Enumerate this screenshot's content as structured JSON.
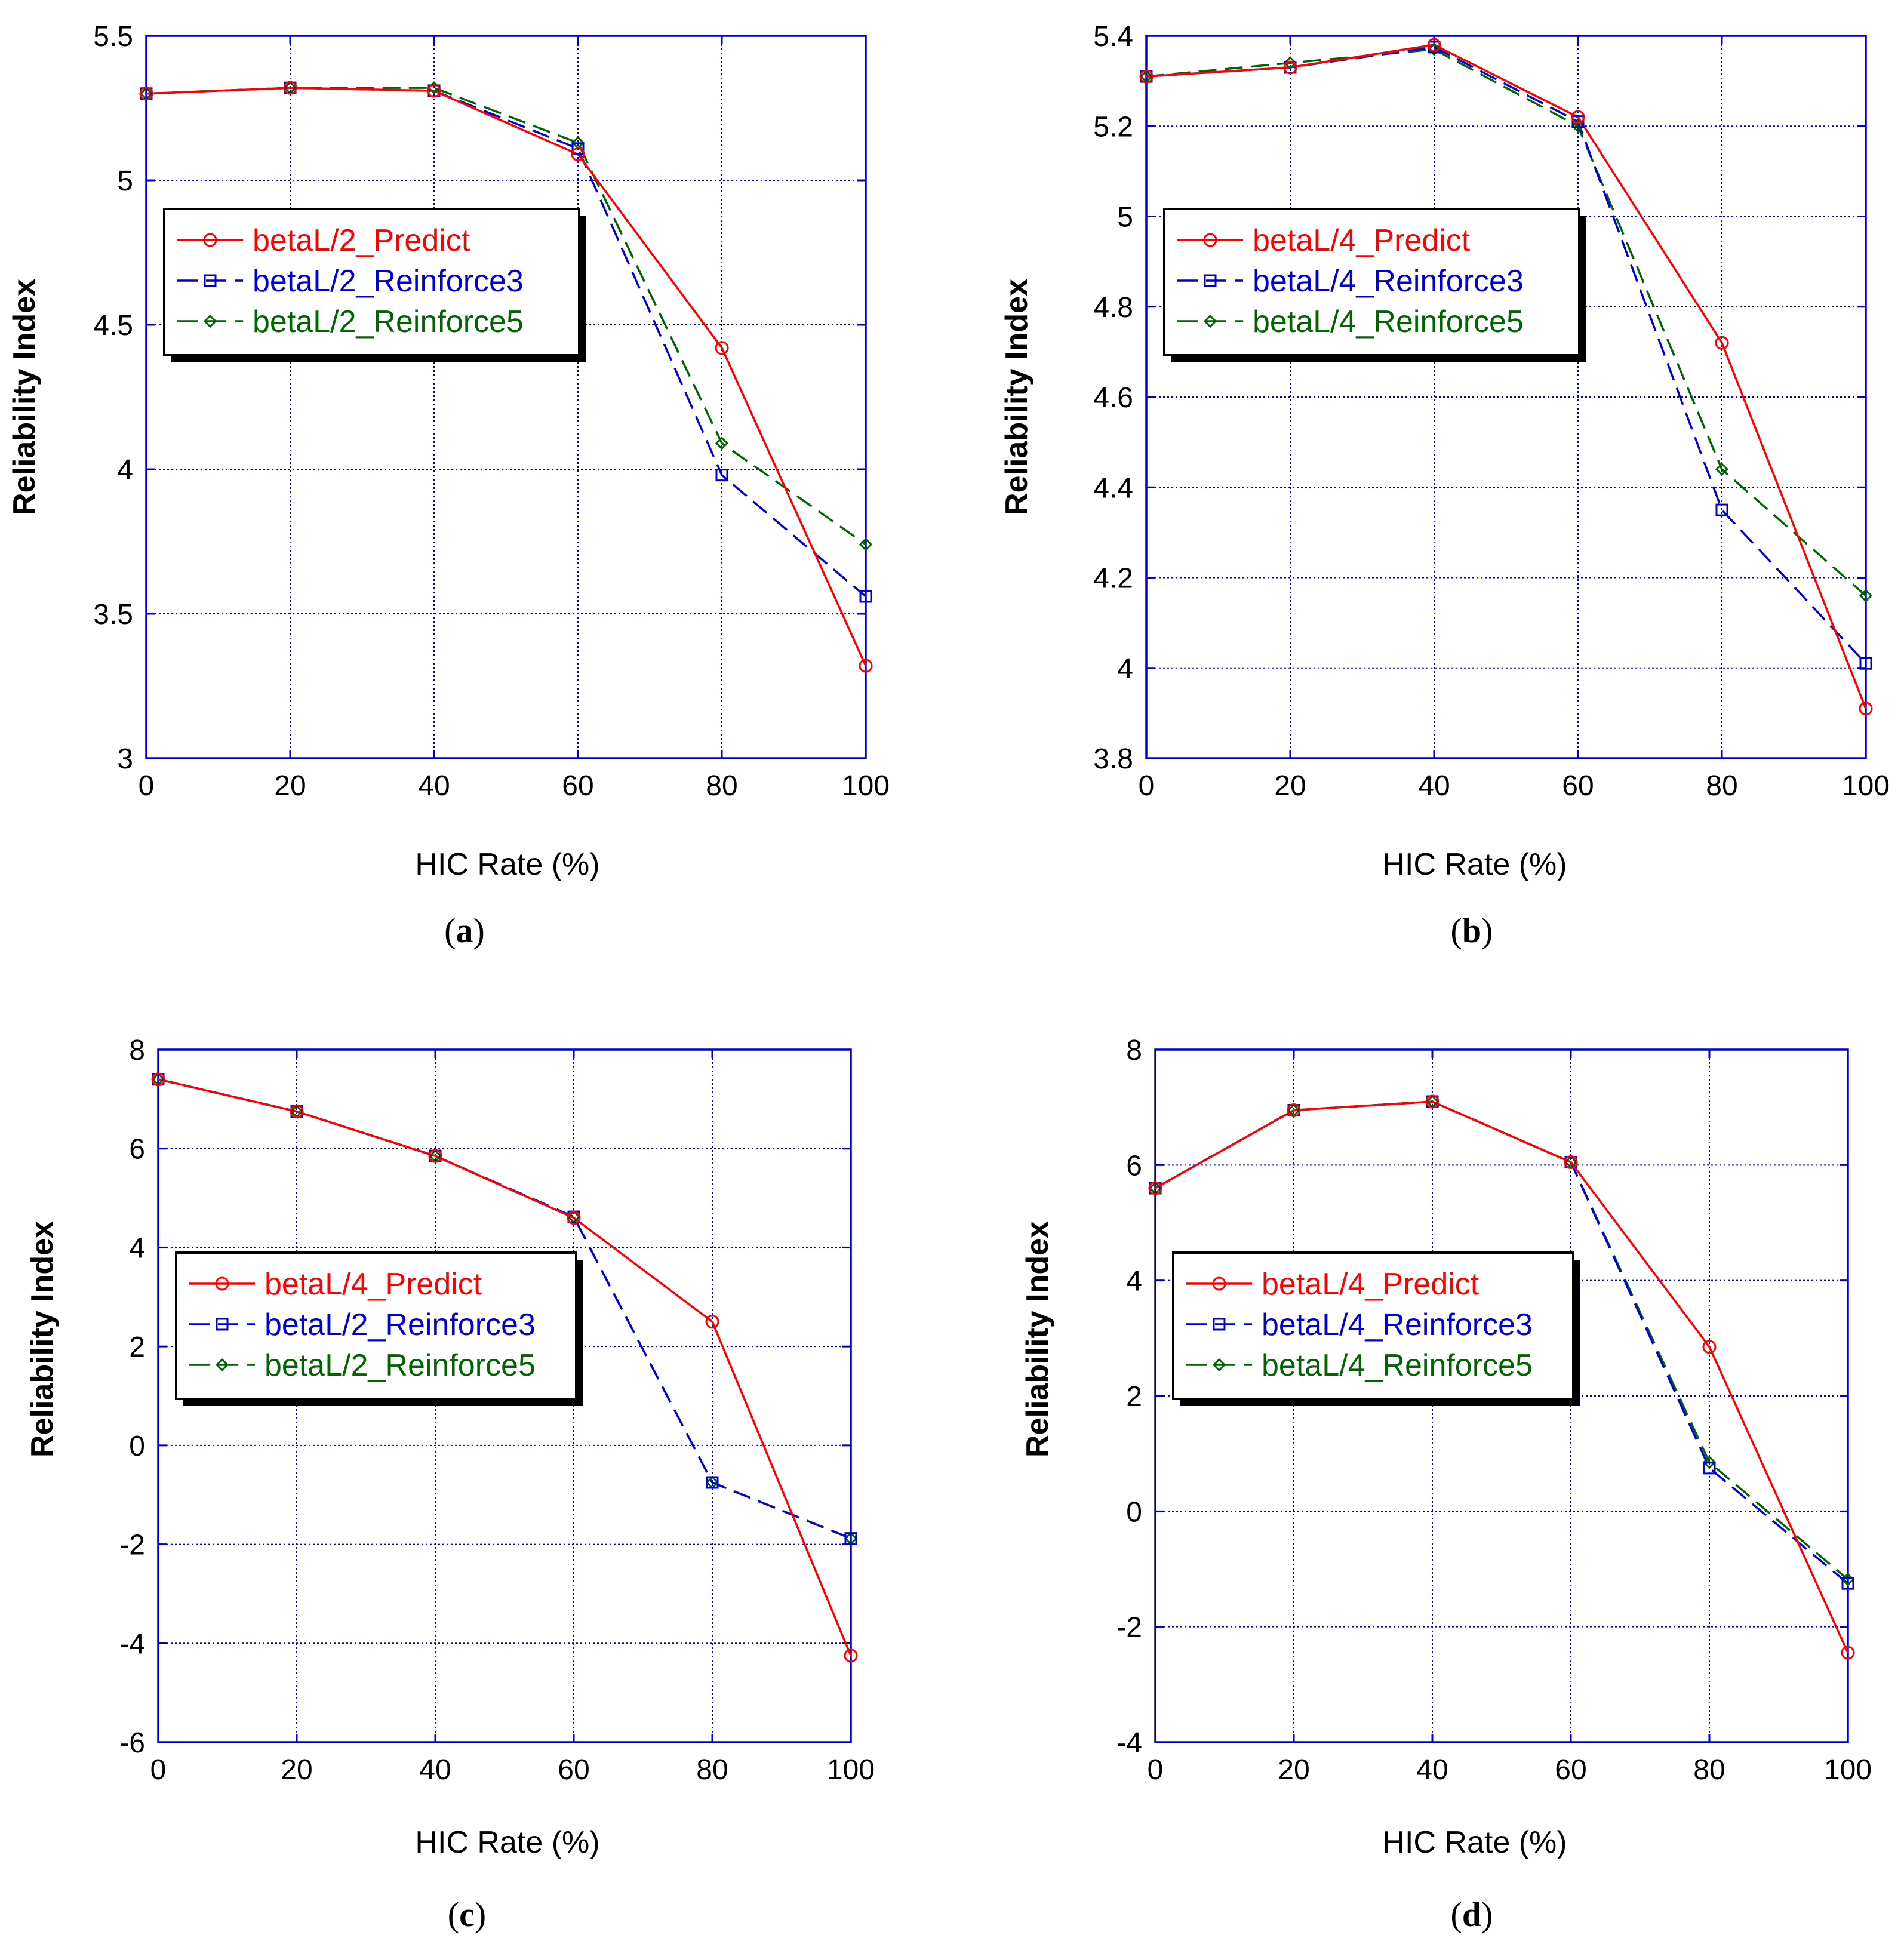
{
  "colors": {
    "predict": "#ff0000",
    "reinforce3": "#0000d2",
    "reinforce5": "#006400",
    "grid": "#0000c8"
  },
  "chart_data": [
    {
      "id": "a",
      "type": "line",
      "caption_letter": "a",
      "xlabel": "HIC Rate (%)",
      "ylabel": "Reliability Index",
      "xlim": [
        0,
        100
      ],
      "ylim": [
        3,
        5.5
      ],
      "xticks": [
        0,
        20,
        40,
        60,
        80,
        100
      ],
      "xtick_labels": [
        "0",
        "20",
        "40",
        "60",
        "80",
        "100"
      ],
      "yticks": [
        3,
        3.5,
        4,
        4.5,
        5,
        5.5
      ],
      "ytick_labels": [
        "3",
        "3.5",
        "4",
        "4.5",
        "5",
        "5.5"
      ],
      "grid": true,
      "legend_position": "upper-left",
      "series": [
        {
          "name": "betaL/2_Predict",
          "color": "#ff0000",
          "marker": "circle",
          "dash": "solid",
          "x": [
            0,
            20,
            40,
            60,
            80,
            100
          ],
          "values": [
            5.3,
            5.32,
            5.31,
            5.09,
            4.42,
            3.32
          ]
        },
        {
          "name": "betaL/2_Reinforce3",
          "color": "#0000d2",
          "marker": "square",
          "dash": "dash",
          "x": [
            0,
            20,
            40,
            60,
            80,
            100
          ],
          "values": [
            5.3,
            5.32,
            5.31,
            5.11,
            3.98,
            3.56
          ]
        },
        {
          "name": "betaL/2_Reinforce5",
          "color": "#006400",
          "marker": "diamond",
          "dash": "dash",
          "x": [
            0,
            20,
            40,
            60,
            80,
            100
          ],
          "values": [
            5.3,
            5.32,
            5.32,
            5.13,
            4.09,
            3.74
          ]
        }
      ]
    },
    {
      "id": "b",
      "type": "line",
      "caption_letter": "b",
      "xlabel": "HIC Rate (%)",
      "ylabel": "Reliability Index",
      "xlim": [
        0,
        100
      ],
      "ylim": [
        3.8,
        5.4
      ],
      "xticks": [
        0,
        20,
        40,
        60,
        80,
        100
      ],
      "xtick_labels": [
        "0",
        "20",
        "40",
        "60",
        "80",
        "100"
      ],
      "yticks": [
        3.8,
        4,
        4.2,
        4.4,
        4.6,
        4.8,
        5,
        5.2,
        5.4
      ],
      "ytick_labels": [
        "3.8",
        "4",
        "4.2",
        "4.4",
        "4.6",
        "4.8",
        "5",
        "5.2",
        "5.4"
      ],
      "grid": true,
      "legend_position": "upper-left",
      "series": [
        {
          "name": "betaL/4_Predict",
          "color": "#ff0000",
          "marker": "circle",
          "dash": "solid",
          "x": [
            0,
            20,
            40,
            60,
            80,
            100
          ],
          "values": [
            5.31,
            5.33,
            5.38,
            5.22,
            4.72,
            3.91
          ]
        },
        {
          "name": "betaL/4_Reinforce3",
          "color": "#0000d2",
          "marker": "square",
          "dash": "dash",
          "x": [
            0,
            20,
            40,
            60,
            80,
            100
          ],
          "values": [
            5.31,
            5.33,
            5.375,
            5.21,
            4.35,
            4.01
          ]
        },
        {
          "name": "betaL/4_Reinforce5",
          "color": "#006400",
          "marker": "diamond",
          "dash": "dash",
          "x": [
            0,
            20,
            40,
            60,
            80,
            100
          ],
          "values": [
            5.31,
            5.34,
            5.37,
            5.2,
            4.44,
            4.16
          ]
        }
      ]
    },
    {
      "id": "c",
      "type": "line",
      "caption_letter": "c",
      "xlabel": "HIC Rate (%)",
      "ylabel": "Reliability Index",
      "xlim": [
        0,
        100
      ],
      "ylim": [
        -6,
        8
      ],
      "xticks": [
        0,
        20,
        40,
        60,
        80,
        100
      ],
      "xtick_labels": [
        "0",
        "20",
        "40",
        "60",
        "80",
        "100"
      ],
      "yticks": [
        -6,
        -4,
        -2,
        0,
        2,
        4,
        6,
        8
      ],
      "ytick_labels": [
        "-6",
        "-4",
        "-2",
        "0",
        "2",
        "4",
        "6",
        "8"
      ],
      "grid": true,
      "legend_position": "center-left",
      "series": [
        {
          "name": "betaL/4_Predict",
          "color": "#ff0000",
          "marker": "circle",
          "dash": "solid",
          "x": [
            0,
            20,
            40,
            60,
            80,
            100
          ],
          "values": [
            7.4,
            6.75,
            5.85,
            4.6,
            2.5,
            -4.25
          ]
        },
        {
          "name": "betaL/2_Reinforce3",
          "color": "#0000d2",
          "marker": "square",
          "dash": "dash",
          "x": [
            0,
            20,
            40,
            60,
            80,
            100
          ],
          "values": [
            7.4,
            6.75,
            5.85,
            4.62,
            -0.75,
            -1.88
          ]
        },
        {
          "name": "betaL/2_Reinforce5",
          "color": "#006400",
          "marker": "diamond",
          "dash": "dash",
          "x": [
            0,
            20,
            40,
            60,
            80,
            100
          ],
          "values": [
            7.4,
            6.75,
            5.85,
            4.62,
            -0.75,
            -1.88
          ]
        }
      ]
    },
    {
      "id": "d",
      "type": "line",
      "caption_letter": "d",
      "xlabel": "HIC Rate (%)",
      "ylabel": "Reliability Index",
      "xlim": [
        0,
        100
      ],
      "ylim": [
        -4,
        8
      ],
      "xticks": [
        0,
        20,
        40,
        60,
        80,
        100
      ],
      "xtick_labels": [
        "0",
        "20",
        "40",
        "60",
        "80",
        "100"
      ],
      "yticks": [
        -4,
        -2,
        0,
        2,
        4,
        6,
        8
      ],
      "ytick_labels": [
        "-4",
        "-2",
        "0",
        "2",
        "4",
        "6",
        "8"
      ],
      "grid": true,
      "legend_position": "center-left",
      "series": [
        {
          "name": "betaL/4_Predict",
          "color": "#ff0000",
          "marker": "circle",
          "dash": "solid",
          "x": [
            0,
            20,
            40,
            60,
            80,
            100
          ],
          "values": [
            5.6,
            6.95,
            7.1,
            6.05,
            2.85,
            -2.45
          ]
        },
        {
          "name": "betaL/4_Reinforce3",
          "color": "#0000d2",
          "marker": "square",
          "dash": "dash",
          "x": [
            0,
            20,
            40,
            60,
            80,
            100
          ],
          "values": [
            5.6,
            6.95,
            7.1,
            6.05,
            0.75,
            -1.25
          ]
        },
        {
          "name": "betaL/4_Reinforce5",
          "color": "#006400",
          "marker": "diamond",
          "dash": "dash",
          "x": [
            0,
            20,
            40,
            60,
            80,
            100
          ],
          "values": [
            5.6,
            6.95,
            7.1,
            6.05,
            0.85,
            -1.18
          ]
        }
      ]
    }
  ]
}
